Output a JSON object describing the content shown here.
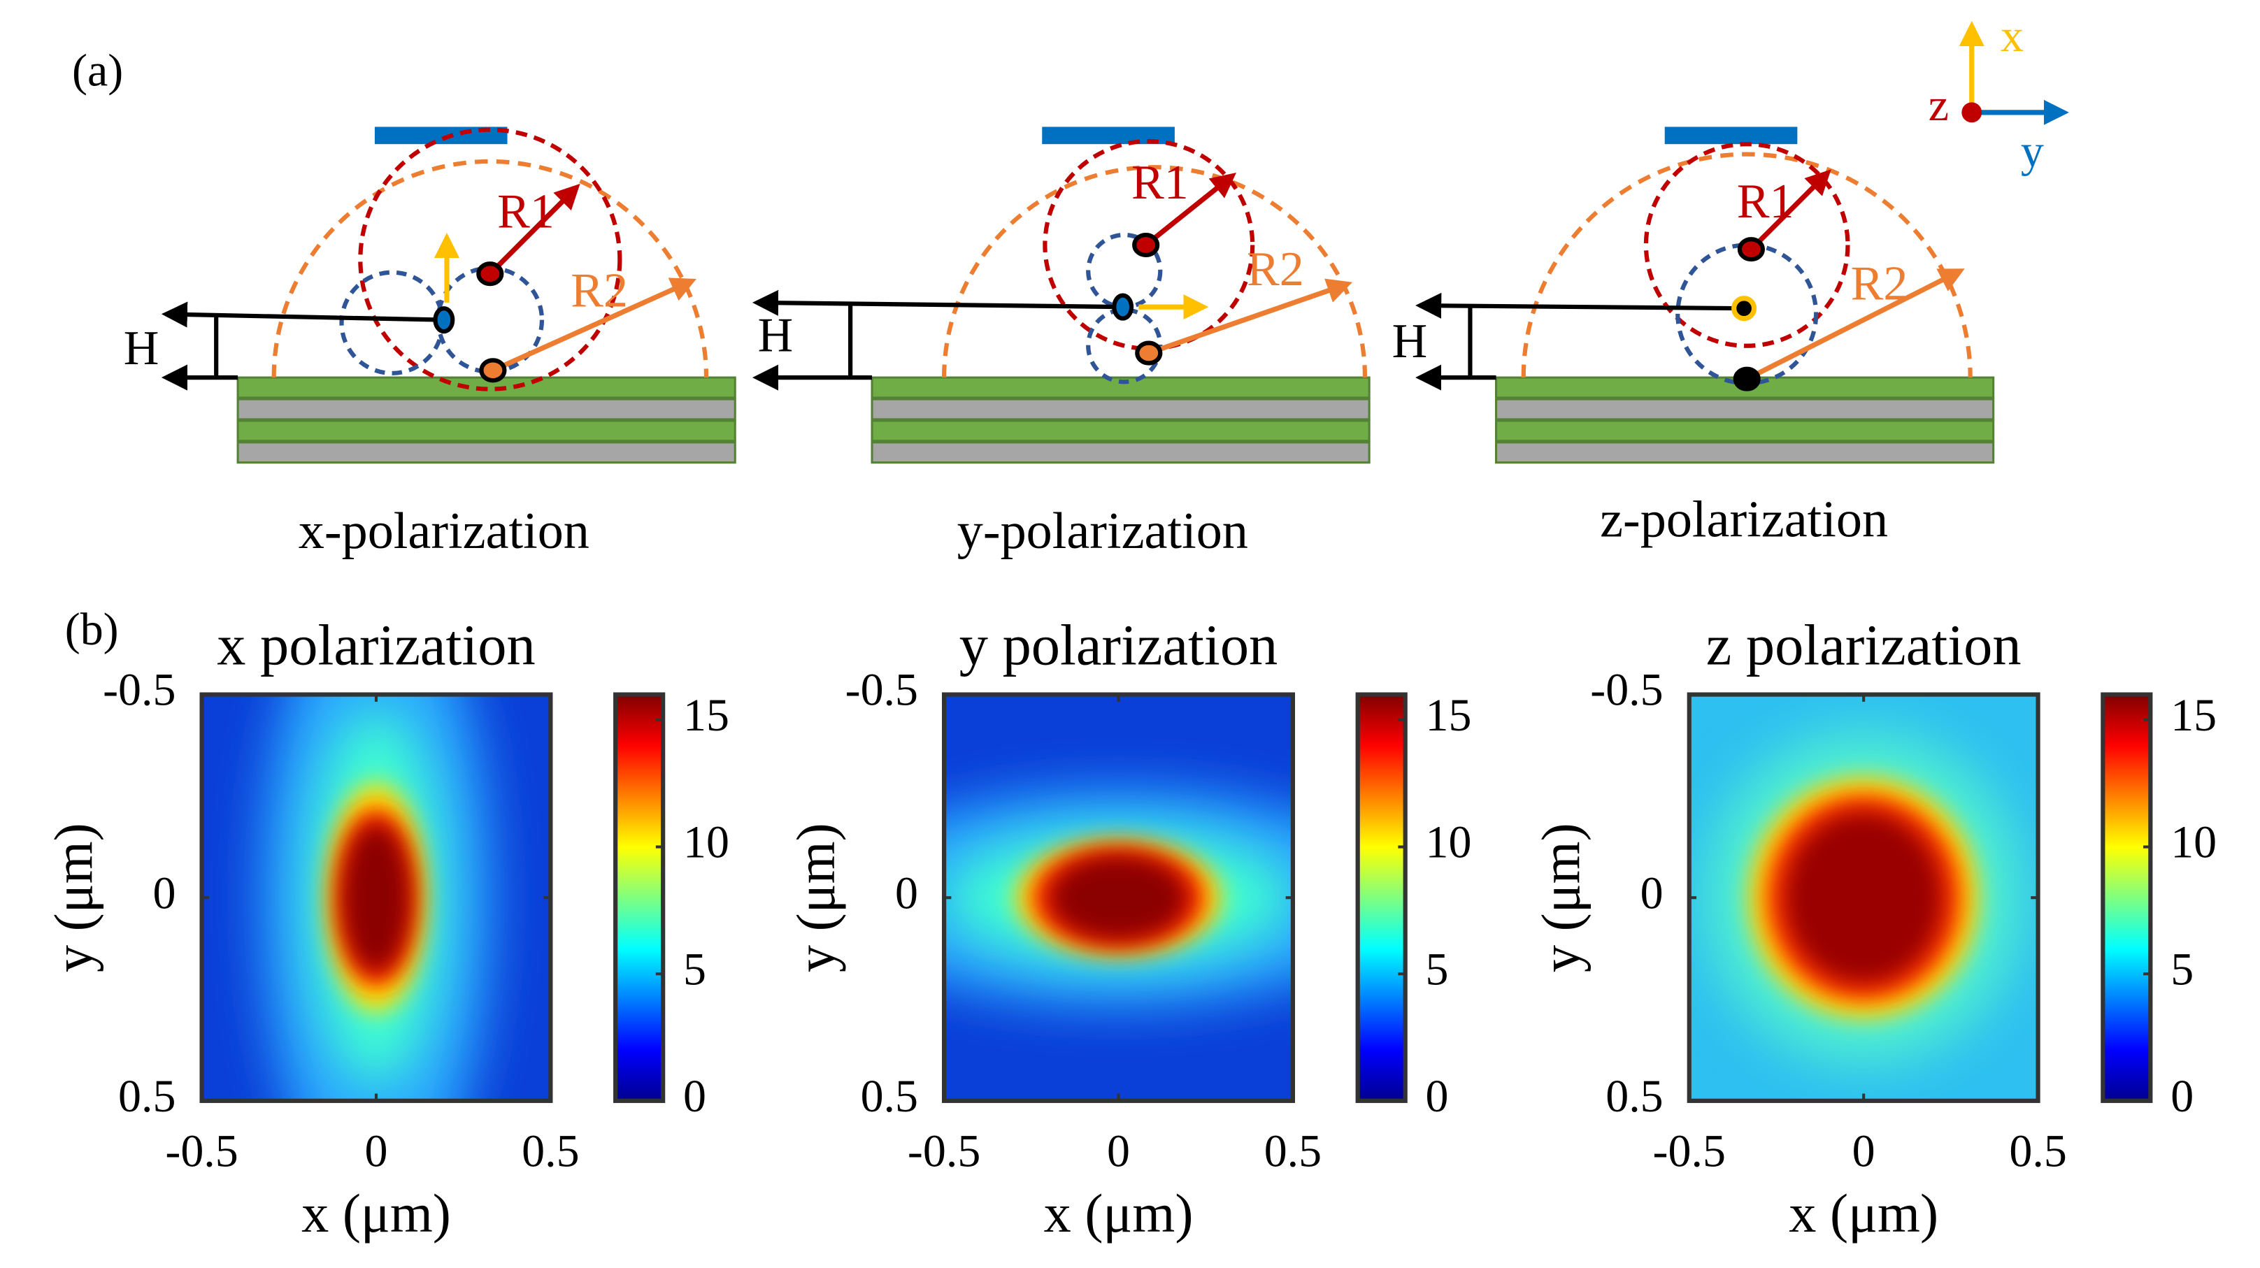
{
  "panel_a": {
    "label": "(a)",
    "diagrams": [
      {
        "caption": "x-polarization",
        "h_label": "H",
        "r1_label": "R1",
        "r2_label": "R2"
      },
      {
        "caption": "y-polarization",
        "h_label": "H",
        "r1_label": "R1",
        "r2_label": "R2"
      },
      {
        "caption": "z-polarization",
        "h_label": "H",
        "r1_label": "R1",
        "r2_label": "R2"
      }
    ],
    "axes_icon": {
      "x": "x",
      "y": "y",
      "z": "z"
    }
  },
  "panel_b": {
    "label": "(b)",
    "plots": [
      {
        "title": "x polarization",
        "xlabel": "x (μm)",
        "ylabel": "y (μm)",
        "xlim": [
          -0.5,
          0.5
        ],
        "ylim": [
          -0.5,
          0.5
        ],
        "xticks": [
          -0.5,
          0,
          0.5
        ],
        "yticks": [
          -0.5,
          0,
          0.5
        ],
        "clim": [
          0,
          16
        ],
        "cticks": [
          0,
          5,
          10,
          15
        ]
      },
      {
        "title": "y polarization",
        "xlabel": "x (μm)",
        "ylabel": "y (μm)",
        "xlim": [
          -0.5,
          0.5
        ],
        "ylim": [
          -0.5,
          0.5
        ],
        "xticks": [
          -0.5,
          0,
          0.5
        ],
        "yticks": [
          -0.5,
          0,
          0.5
        ],
        "clim": [
          0,
          16
        ],
        "cticks": [
          0,
          5,
          10,
          15
        ]
      },
      {
        "title": "z polarization",
        "xlabel": "x (μm)",
        "ylabel": "y (μm)",
        "xlim": [
          -0.5,
          0.5
        ],
        "ylim": [
          -0.5,
          0.5
        ],
        "xticks": [
          -0.5,
          0,
          0.5
        ],
        "yticks": [
          -0.5,
          0,
          0.5
        ],
        "clim": [
          0,
          16
        ],
        "cticks": [
          0,
          5,
          10,
          15
        ]
      }
    ]
  }
}
